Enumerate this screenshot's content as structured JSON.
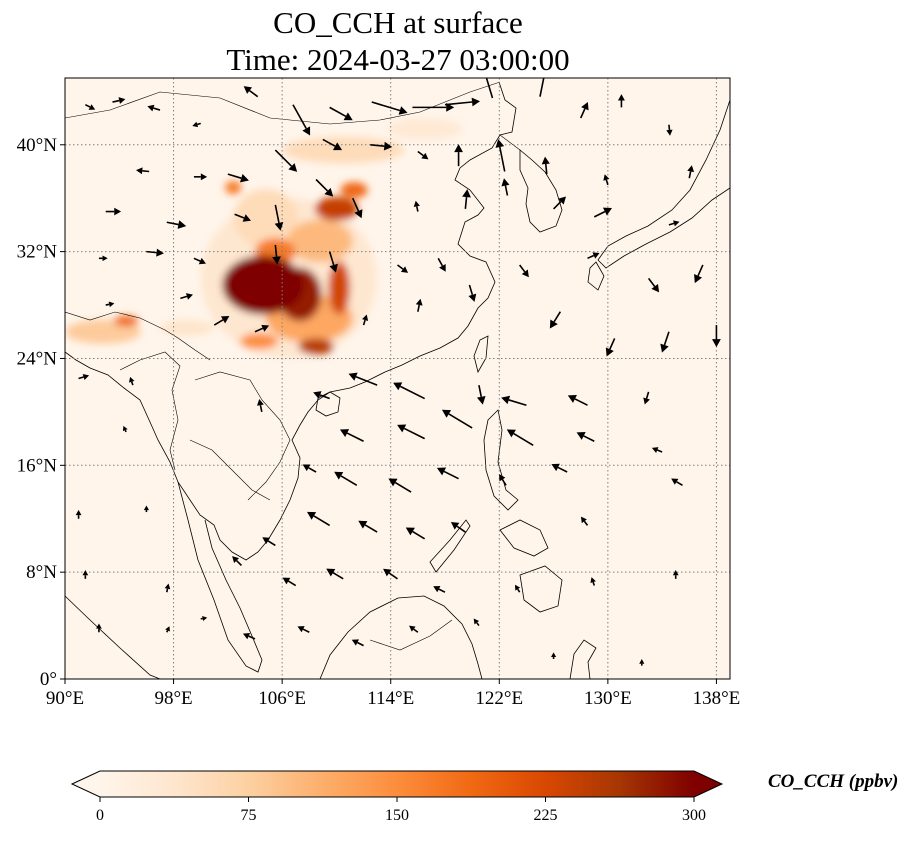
{
  "title": {
    "line1": "CO_CCH at surface",
    "line2": "Time: 2024-03-27 03:00:00"
  },
  "map": {
    "lon_range": [
      90,
      139
    ],
    "lat_range": [
      0,
      45
    ],
    "x_ticks": [
      {
        "value": 90,
        "label": "90°E"
      },
      {
        "value": 98,
        "label": "98°E"
      },
      {
        "value": 106,
        "label": "106°E"
      },
      {
        "value": 114,
        "label": "114°E"
      },
      {
        "value": 122,
        "label": "122°E"
      },
      {
        "value": 130,
        "label": "130°E"
      },
      {
        "value": 138,
        "label": "138°E"
      }
    ],
    "y_ticks": [
      {
        "value": 0,
        "label": "0°"
      },
      {
        "value": 8,
        "label": "8°N"
      },
      {
        "value": 16,
        "label": "16°N"
      },
      {
        "value": 24,
        "label": "24°N"
      },
      {
        "value": 32,
        "label": "32°N"
      },
      {
        "value": 40,
        "label": "40°N"
      }
    ],
    "gridlines": true,
    "background_color": "#fff5eb",
    "plumes": [
      {
        "lon": 104.6,
        "lat": 29.5,
        "rlon": 3.0,
        "rlat": 2.2,
        "value": 300
      },
      {
        "lon": 107.3,
        "lat": 28.8,
        "rlon": 1.6,
        "rlat": 2.0,
        "value": 280
      },
      {
        "lon": 108.5,
        "lat": 24.9,
        "rlon": 1.3,
        "rlat": 0.6,
        "value": 250
      },
      {
        "lon": 110.2,
        "lat": 29.3,
        "rlon": 0.8,
        "rlat": 2.0,
        "value": 230
      },
      {
        "lon": 110.0,
        "lat": 35.2,
        "rlon": 1.6,
        "rlat": 0.9,
        "value": 240
      },
      {
        "lon": 111.3,
        "lat": 36.6,
        "rlon": 1.0,
        "rlat": 0.6,
        "value": 190
      },
      {
        "lon": 104.3,
        "lat": 25.3,
        "rlon": 1.4,
        "rlat": 0.6,
        "value": 150
      },
      {
        "lon": 102.4,
        "lat": 36.8,
        "rlon": 0.6,
        "rlat": 0.5,
        "value": 170
      },
      {
        "lon": 105.5,
        "lat": 32.0,
        "rlon": 1.5,
        "rlat": 1.0,
        "value": 170
      },
      {
        "lon": 108.8,
        "lat": 32.8,
        "rlon": 2.4,
        "rlat": 1.6,
        "value": 100
      },
      {
        "lon": 108.0,
        "lat": 27.0,
        "rlon": 3.2,
        "rlat": 1.8,
        "value": 120
      },
      {
        "lon": 104.8,
        "lat": 34.5,
        "rlon": 2.4,
        "rlat": 2.2,
        "value": 55
      },
      {
        "lon": 106.5,
        "lat": 30.0,
        "rlon": 6.5,
        "rlat": 6.0,
        "value": 35
      },
      {
        "lon": 94.5,
        "lat": 26.8,
        "rlon": 0.9,
        "rlat": 0.4,
        "value": 190
      },
      {
        "lon": 92.8,
        "lat": 26.0,
        "rlon": 2.8,
        "rlat": 0.9,
        "value": 80
      },
      {
        "lon": 110.5,
        "lat": 39.6,
        "rlon": 4.5,
        "rlat": 1.0,
        "value": 55
      },
      {
        "lon": 116.5,
        "lat": 41.2,
        "rlon": 2.8,
        "rlat": 0.8,
        "value": 30
      },
      {
        "lon": 99.0,
        "lat": 26.3,
        "rlon": 2.0,
        "rlat": 0.6,
        "value": 40
      }
    ]
  },
  "wind_vectors": [
    {
      "lon": 91.5,
      "lat": 43.0,
      "u": 1.0,
      "v": -0.5,
      "len": 0.5
    },
    {
      "lon": 93.5,
      "lat": 43.2,
      "u": 0.9,
      "v": 0.2,
      "len": 0.6
    },
    {
      "lon": 97.0,
      "lat": 42.6,
      "u": -1.0,
      "v": 0.3,
      "len": 0.6
    },
    {
      "lon": 100.0,
      "lat": 41.6,
      "u": -1.0,
      "v": -0.3,
      "len": 0.4
    },
    {
      "lon": 104.2,
      "lat": 43.6,
      "u": -0.8,
      "v": 0.6,
      "len": 0.8
    },
    {
      "lon": 106.8,
      "lat": 43.0,
      "u": 0.5,
      "v": -0.9,
      "len": 1.6
    },
    {
      "lon": 109.5,
      "lat": 42.8,
      "u": 0.9,
      "v": -0.5,
      "len": 1.2
    },
    {
      "lon": 112.6,
      "lat": 43.2,
      "u": 1.0,
      "v": -0.3,
      "len": 1.7
    },
    {
      "lon": 115.6,
      "lat": 42.8,
      "u": 1.0,
      "v": 0.0,
      "len": 1.9
    },
    {
      "lon": 118.0,
      "lat": 43.0,
      "u": 1.0,
      "v": 0.1,
      "len": 1.6
    },
    {
      "lon": 121.5,
      "lat": 43.5,
      "u": -0.3,
      "v": 1.0,
      "len": 1.5
    },
    {
      "lon": 125.0,
      "lat": 43.6,
      "u": 0.2,
      "v": 1.0,
      "len": 1.6
    },
    {
      "lon": 128.0,
      "lat": 42.0,
      "u": 0.4,
      "v": 0.9,
      "len": 0.8
    },
    {
      "lon": 131.0,
      "lat": 42.8,
      "u": 0.0,
      "v": 1.0,
      "len": 0.6
    },
    {
      "lon": 134.5,
      "lat": 41.5,
      "u": 0.1,
      "v": -1.0,
      "len": 0.5
    },
    {
      "lon": 96.2,
      "lat": 38.0,
      "u": -1.0,
      "v": 0.1,
      "len": 0.6
    },
    {
      "lon": 99.5,
      "lat": 37.6,
      "u": 1.0,
      "v": 0.0,
      "len": 0.6
    },
    {
      "lon": 102.0,
      "lat": 37.8,
      "u": 1.0,
      "v": -0.3,
      "len": 1.0
    },
    {
      "lon": 105.5,
      "lat": 39.6,
      "u": 0.7,
      "v": -0.7,
      "len": 1.4
    },
    {
      "lon": 109.0,
      "lat": 40.4,
      "u": 0.9,
      "v": -0.5,
      "len": 1.0
    },
    {
      "lon": 112.5,
      "lat": 40.0,
      "u": 1.0,
      "v": -0.1,
      "len": 1.0
    },
    {
      "lon": 116.0,
      "lat": 39.5,
      "u": 0.8,
      "v": -0.6,
      "len": 0.6
    },
    {
      "lon": 119.0,
      "lat": 38.4,
      "u": 0.0,
      "v": 1.0,
      "len": 1.0
    },
    {
      "lon": 122.4,
      "lat": 38.0,
      "u": -0.2,
      "v": 1.0,
      "len": 1.5
    },
    {
      "lon": 125.5,
      "lat": 37.8,
      "u": -0.1,
      "v": 1.0,
      "len": 0.8
    },
    {
      "lon": 130.0,
      "lat": 37.0,
      "u": -0.3,
      "v": 1.0,
      "len": 0.5
    },
    {
      "lon": 136.0,
      "lat": 37.5,
      "u": 0.2,
      "v": 1.0,
      "len": 0.6
    },
    {
      "lon": 93.0,
      "lat": 35.0,
      "u": 1.0,
      "v": 0.0,
      "len": 0.7
    },
    {
      "lon": 97.5,
      "lat": 34.2,
      "u": 1.0,
      "v": -0.2,
      "len": 0.9
    },
    {
      "lon": 102.5,
      "lat": 34.8,
      "u": 1.0,
      "v": -0.4,
      "len": 0.8
    },
    {
      "lon": 105.5,
      "lat": 35.5,
      "u": 0.2,
      "v": -1.0,
      "len": 1.2
    },
    {
      "lon": 108.5,
      "lat": 37.4,
      "u": 0.7,
      "v": -0.7,
      "len": 1.1
    },
    {
      "lon": 111.2,
      "lat": 36.0,
      "u": 0.4,
      "v": -0.9,
      "len": 1.0
    },
    {
      "lon": 116.0,
      "lat": 35.0,
      "u": -0.2,
      "v": 1.0,
      "len": 0.5
    },
    {
      "lon": 119.5,
      "lat": 35.2,
      "u": 0.1,
      "v": 1.0,
      "len": 0.9
    },
    {
      "lon": 122.6,
      "lat": 36.2,
      "u": -0.2,
      "v": 1.0,
      "len": 0.8
    },
    {
      "lon": 126.0,
      "lat": 35.2,
      "u": 0.7,
      "v": 0.7,
      "len": 0.8
    },
    {
      "lon": 129.0,
      "lat": 34.6,
      "u": 1.0,
      "v": 0.5,
      "len": 0.9
    },
    {
      "lon": 134.5,
      "lat": 34.0,
      "u": 1.0,
      "v": 0.3,
      "len": 0.5
    },
    {
      "lon": 92.5,
      "lat": 31.5,
      "u": 1.0,
      "v": 0.0,
      "len": 0.4
    },
    {
      "lon": 96.0,
      "lat": 32.0,
      "u": 1.0,
      "v": -0.1,
      "len": 0.8
    },
    {
      "lon": 99.5,
      "lat": 31.5,
      "u": 0.9,
      "v": -0.4,
      "len": 0.6
    },
    {
      "lon": 105.5,
      "lat": 32.5,
      "u": 0.1,
      "v": -1.0,
      "len": 0.9
    },
    {
      "lon": 109.5,
      "lat": 32.0,
      "u": 0.3,
      "v": -1.0,
      "len": 1.0
    },
    {
      "lon": 114.5,
      "lat": 31.0,
      "u": 0.8,
      "v": -0.6,
      "len": 0.6
    },
    {
      "lon": 117.5,
      "lat": 31.5,
      "u": 0.5,
      "v": -0.9,
      "len": 0.7
    },
    {
      "lon": 119.8,
      "lat": 29.5,
      "u": 0.3,
      "v": -1.0,
      "len": 0.8
    },
    {
      "lon": 123.5,
      "lat": 31.0,
      "u": 0.6,
      "v": -0.8,
      "len": 0.7
    },
    {
      "lon": 128.5,
      "lat": 31.5,
      "u": 0.9,
      "v": 0.4,
      "len": 0.6
    },
    {
      "lon": 133.0,
      "lat": 30.0,
      "u": 0.6,
      "v": -0.8,
      "len": 0.8
    },
    {
      "lon": 137.0,
      "lat": 31.0,
      "u": -0.4,
      "v": -0.9,
      "len": 0.9
    },
    {
      "lon": 93.0,
      "lat": 28.0,
      "u": 1.0,
      "v": 0.2,
      "len": 0.4
    },
    {
      "lon": 98.5,
      "lat": 28.5,
      "u": 1.0,
      "v": 0.3,
      "len": 0.6
    },
    {
      "lon": 101.0,
      "lat": 26.5,
      "u": 1.0,
      "v": 0.6,
      "len": 0.8
    },
    {
      "lon": 104.0,
      "lat": 26.0,
      "u": 0.9,
      "v": 0.4,
      "len": 0.7
    },
    {
      "lon": 112.0,
      "lat": 26.5,
      "u": 0.3,
      "v": 1.0,
      "len": 0.5
    },
    {
      "lon": 116.0,
      "lat": 27.5,
      "u": 0.2,
      "v": 1.0,
      "len": 0.6
    },
    {
      "lon": 126.5,
      "lat": 27.5,
      "u": -0.5,
      "v": -0.8,
      "len": 0.9
    },
    {
      "lon": 130.5,
      "lat": 25.5,
      "u": -0.4,
      "v": -0.9,
      "len": 0.9
    },
    {
      "lon": 134.5,
      "lat": 26.0,
      "u": -0.3,
      "v": -0.9,
      "len": 1.0
    },
    {
      "lon": 138.0,
      "lat": 26.5,
      "u": 0.0,
      "v": -1.0,
      "len": 1.0
    },
    {
      "lon": 91.0,
      "lat": 22.5,
      "u": 1.0,
      "v": 0.3,
      "len": 0.5
    },
    {
      "lon": 95.0,
      "lat": 22.0,
      "u": -0.3,
      "v": 0.9,
      "len": 0.4
    },
    {
      "lon": 109.5,
      "lat": 21.0,
      "u": -0.8,
      "v": 0.3,
      "len": 0.8
    },
    {
      "lon": 113.0,
      "lat": 22.0,
      "u": -1.0,
      "v": 0.4,
      "len": 1.4
    },
    {
      "lon": 116.5,
      "lat": 21.0,
      "u": -1.0,
      "v": 0.5,
      "len": 1.6
    },
    {
      "lon": 120.5,
      "lat": 22.0,
      "u": 0.2,
      "v": -1.0,
      "len": 0.9
    },
    {
      "lon": 124.0,
      "lat": 20.5,
      "u": -1.0,
      "v": 0.3,
      "len": 1.2
    },
    {
      "lon": 128.5,
      "lat": 20.5,
      "u": -1.0,
      "v": 0.5,
      "len": 1.0
    },
    {
      "lon": 133.0,
      "lat": 21.5,
      "u": -0.3,
      "v": -1.0,
      "len": 0.6
    },
    {
      "lon": 104.5,
      "lat": 20.0,
      "u": -0.2,
      "v": 1.0,
      "len": 0.6
    },
    {
      "lon": 94.5,
      "lat": 18.5,
      "u": -0.4,
      "v": 0.9,
      "len": 0.3
    },
    {
      "lon": 112.0,
      "lat": 17.8,
      "u": -1.0,
      "v": 0.5,
      "len": 1.2
    },
    {
      "lon": 116.5,
      "lat": 18.0,
      "u": -1.0,
      "v": 0.5,
      "len": 1.4
    },
    {
      "lon": 120.0,
      "lat": 18.8,
      "u": -1.0,
      "v": 0.6,
      "len": 1.6
    },
    {
      "lon": 124.5,
      "lat": 17.5,
      "u": -1.0,
      "v": 0.6,
      "len": 1.4
    },
    {
      "lon": 129.0,
      "lat": 17.8,
      "u": -1.0,
      "v": 0.5,
      "len": 0.9
    },
    {
      "lon": 134.0,
      "lat": 17.0,
      "u": -1.0,
      "v": 0.4,
      "len": 0.5
    },
    {
      "lon": 108.5,
      "lat": 15.5,
      "u": -0.9,
      "v": 0.5,
      "len": 0.7
    },
    {
      "lon": 111.5,
      "lat": 14.5,
      "u": -1.0,
      "v": 0.6,
      "len": 1.2
    },
    {
      "lon": 115.5,
      "lat": 14.0,
      "u": -1.0,
      "v": 0.6,
      "len": 1.2
    },
    {
      "lon": 119.0,
      "lat": 15.0,
      "u": -1.0,
      "v": 0.5,
      "len": 1.1
    },
    {
      "lon": 122.5,
      "lat": 14.5,
      "u": -0.5,
      "v": 0.8,
      "len": 0.6
    },
    {
      "lon": 127.0,
      "lat": 15.5,
      "u": -1.0,
      "v": 0.5,
      "len": 0.8
    },
    {
      "lon": 135.5,
      "lat": 14.5,
      "u": -1.0,
      "v": 0.6,
      "len": 0.6
    },
    {
      "lon": 91.0,
      "lat": 12.0,
      "u": 0.0,
      "v": 1.0,
      "len": 0.4
    },
    {
      "lon": 96.0,
      "lat": 12.5,
      "u": 0.0,
      "v": 1.0,
      "len": 0.3
    },
    {
      "lon": 105.5,
      "lat": 10.0,
      "u": -0.8,
      "v": 0.5,
      "len": 0.7
    },
    {
      "lon": 109.5,
      "lat": 11.5,
      "u": -1.0,
      "v": 0.6,
      "len": 1.2
    },
    {
      "lon": 113.0,
      "lat": 11.0,
      "u": -1.0,
      "v": 0.6,
      "len": 1.0
    },
    {
      "lon": 116.5,
      "lat": 10.5,
      "u": -1.0,
      "v": 0.6,
      "len": 1.0
    },
    {
      "lon": 119.5,
      "lat": 11.0,
      "u": -1.0,
      "v": 0.7,
      "len": 0.8
    },
    {
      "lon": 128.5,
      "lat": 11.5,
      "u": -0.6,
      "v": 0.8,
      "len": 0.5
    },
    {
      "lon": 91.5,
      "lat": 7.5,
      "u": 0.0,
      "v": 1.0,
      "len": 0.4
    },
    {
      "lon": 97.5,
      "lat": 6.5,
      "u": 0.2,
      "v": 1.0,
      "len": 0.4
    },
    {
      "lon": 103.0,
      "lat": 8.5,
      "u": -0.7,
      "v": 0.7,
      "len": 0.6
    },
    {
      "lon": 107.0,
      "lat": 7.0,
      "u": -1.0,
      "v": 0.6,
      "len": 0.7
    },
    {
      "lon": 110.5,
      "lat": 7.5,
      "u": -1.0,
      "v": 0.6,
      "len": 0.9
    },
    {
      "lon": 114.5,
      "lat": 7.5,
      "u": -1.0,
      "v": 0.7,
      "len": 0.8
    },
    {
      "lon": 118.0,
      "lat": 6.5,
      "u": -1.0,
      "v": 0.5,
      "len": 0.6
    },
    {
      "lon": 123.5,
      "lat": 6.5,
      "u": -0.5,
      "v": 0.8,
      "len": 0.4
    },
    {
      "lon": 129.0,
      "lat": 7.0,
      "u": -0.3,
      "v": 0.9,
      "len": 0.4
    },
    {
      "lon": 135.0,
      "lat": 7.5,
      "u": 0.0,
      "v": 1.0,
      "len": 0.4
    },
    {
      "lon": 92.5,
      "lat": 3.5,
      "u": 0.0,
      "v": 1.0,
      "len": 0.4
    },
    {
      "lon": 97.5,
      "lat": 3.5,
      "u": 0.4,
      "v": 0.9,
      "len": 0.3
    },
    {
      "lon": 100.0,
      "lat": 4.5,
      "u": 1.0,
      "v": 0.2,
      "len": 0.3
    },
    {
      "lon": 104.0,
      "lat": 3.0,
      "u": -0.9,
      "v": 0.4,
      "len": 0.6
    },
    {
      "lon": 108.0,
      "lat": 3.5,
      "u": -1.0,
      "v": 0.5,
      "len": 0.6
    },
    {
      "lon": 112.0,
      "lat": 2.5,
      "u": -1.0,
      "v": 0.5,
      "len": 0.6
    },
    {
      "lon": 116.0,
      "lat": 3.5,
      "u": -0.8,
      "v": 0.6,
      "len": 0.5
    },
    {
      "lon": 120.5,
      "lat": 4.0,
      "u": -0.6,
      "v": 0.8,
      "len": 0.4
    },
    {
      "lon": 126.0,
      "lat": 1.5,
      "u": 0.0,
      "v": 1.0,
      "len": 0.3
    },
    {
      "lon": 132.5,
      "lat": 1.0,
      "u": 0.0,
      "v": 1.0,
      "len": 0.3
    }
  ],
  "colorbar": {
    "label": "CO_CCH (ppbv)",
    "min": 0,
    "max": 300,
    "extend": "both",
    "ticks": [
      "0",
      "75",
      "150",
      "225",
      "300"
    ],
    "colormap": [
      "#fff5eb",
      "#fee6ce",
      "#fdd0a2",
      "#fdae6b",
      "#fd8d3c",
      "#f16913",
      "#d94801",
      "#a63603",
      "#7f0000"
    ]
  },
  "coastline_color": "#000000",
  "arrow_color": "#000000"
}
